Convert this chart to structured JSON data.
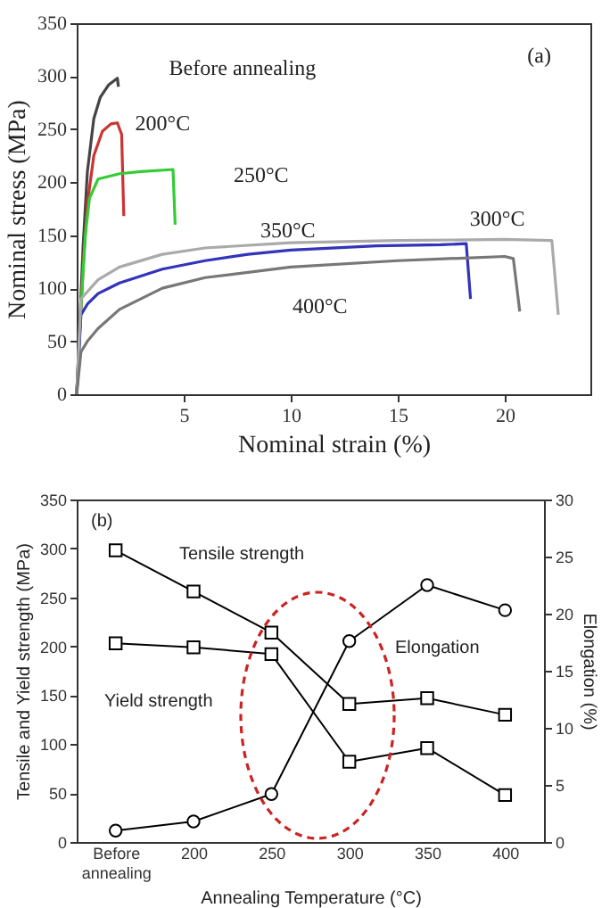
{
  "chart_data": [
    {
      "type": "line",
      "xlabel": "Nominal strain (%)",
      "ylabel": "Nominal stress (MPa)",
      "xlim": [
        0,
        24
      ],
      "xticks": [
        5,
        10,
        15,
        20
      ],
      "ylim": [
        0,
        350
      ],
      "yticks": [
        0,
        50,
        100,
        150,
        200,
        250,
        300,
        350
      ],
      "grid": false,
      "series": [
        {
          "name": "Before annealing",
          "color": "#444444",
          "x": [
            0,
            0.3,
            0.5,
            0.8,
            1.1,
            1.5,
            1.9,
            1.95
          ],
          "values": [
            0,
            140,
            210,
            260,
            280,
            292,
            298,
            290
          ]
        },
        {
          "name": "200°C",
          "color": "#cc3333",
          "x": [
            0,
            0.3,
            0.5,
            0.8,
            1.2,
            1.6,
            1.9,
            2.1,
            2.2
          ],
          "values": [
            0,
            120,
            180,
            225,
            248,
            255,
            256,
            245,
            168
          ]
        },
        {
          "name": "250°C",
          "color": "#33cc33",
          "x": [
            0,
            0.2,
            0.4,
            0.6,
            1,
            2,
            3,
            4.5,
            4.6
          ],
          "values": [
            0,
            80,
            150,
            185,
            203,
            208,
            210,
            212,
            160
          ]
        },
        {
          "name": "300°C",
          "color": "#3333bb",
          "x": [
            0,
            0.2,
            0.5,
            1,
            2,
            4,
            6,
            8,
            10,
            14,
            17,
            18.2,
            18.4
          ],
          "values": [
            0,
            75,
            85,
            95,
            105,
            118,
            126,
            132,
            136,
            140,
            141,
            142,
            90
          ]
        },
        {
          "name": "350°C",
          "color": "#aaaaaa",
          "x": [
            0,
            0.2,
            1,
            2,
            4,
            6,
            10,
            15,
            20,
            22.2,
            22.5
          ],
          "values": [
            0,
            90,
            108,
            120,
            132,
            138,
            143,
            145,
            146,
            145,
            75
          ]
        },
        {
          "name": "400°C",
          "color": "#777777",
          "x": [
            0,
            0.2,
            0.5,
            1,
            2,
            4,
            6,
            10,
            15,
            20,
            20.4,
            20.7
          ],
          "values": [
            0,
            40,
            50,
            62,
            80,
            100,
            110,
            120,
            126,
            130,
            128,
            78
          ]
        }
      ],
      "annotations": [
        "(a)"
      ]
    },
    {
      "type": "line",
      "xlabel": "Annealing Temperature (°C)",
      "ylabel": "Tensile and Yield strength (MPa)",
      "y2label": "Elongation (%)",
      "categories": [
        "Before annealing",
        "200",
        "250",
        "300",
        "350",
        "400"
      ],
      "ylim": [
        0,
        350
      ],
      "yticks": [
        0,
        50,
        100,
        150,
        200,
        250,
        300,
        350
      ],
      "y2lim": [
        0,
        30
      ],
      "y2ticks": [
        0,
        5,
        10,
        15,
        20,
        25,
        30
      ],
      "grid": false,
      "series": [
        {
          "name": "Tensile strength",
          "color": "#000000",
          "marker": "square",
          "values": [
            298,
            256,
            214,
            141,
            147,
            130
          ]
        },
        {
          "name": "Yield strength",
          "color": "#000000",
          "marker": "square",
          "values": [
            203,
            199,
            192,
            82,
            96,
            48
          ]
        },
        {
          "name": "Elongation",
          "color": "#000000",
          "marker": "circle",
          "axis": "y2",
          "values": [
            1,
            1.8,
            4.2,
            17.6,
            22.5,
            20.3
          ]
        }
      ],
      "annotations": [
        "(b)"
      ]
    }
  ]
}
